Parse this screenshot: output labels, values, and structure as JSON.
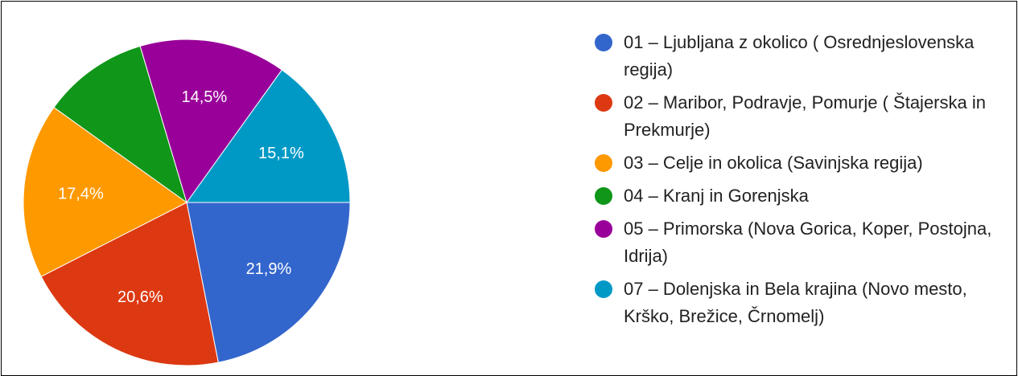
{
  "chart_data": {
    "type": "pie",
    "categories": [
      "01 – Ljubljana z okolico ( Osrednjeslovenska regija)",
      "02 – Maribor, Podravje, Pomurje ( Štajerska in Prekmurje)",
      "03 – Celje in okolica (Savinjska regija)",
      "04 – Kranj in Gorenjska",
      "05 – Primorska (Nova Gorica, Koper, Postojna, Idrija)",
      "07 – Dolenjska in Bela krajina (Novo mesto, Krško, Brežice, Črnomelj)"
    ],
    "values": [
      21.9,
      20.6,
      17.4,
      10.5,
      14.5,
      15.1
    ],
    "value_labels": [
      "21,9%",
      "20,6%",
      "17,4%",
      null,
      "14,5%",
      "15,1%"
    ],
    "colors": [
      "#3366cc",
      "#dc3912",
      "#ff9900",
      "#109618",
      "#990099",
      "#0099c6"
    ]
  }
}
